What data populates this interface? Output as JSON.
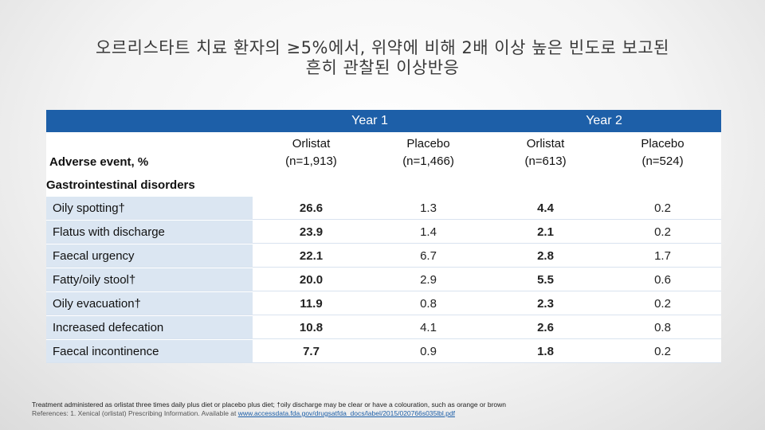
{
  "title": {
    "line1": "오르리스타트 치료 환자의 ≥5%에서, 위약에 비해 2배 이상 높은 빈도로 보고된",
    "line2": "흔히 관찰된 이상반응"
  },
  "table": {
    "year1": "Year 1",
    "year2": "Year 2",
    "row_header": "Adverse event, %",
    "columns": [
      {
        "name": "Orlistat",
        "n": "(n=1,913)"
      },
      {
        "name": "Placebo",
        "n": "(n=1,466)"
      },
      {
        "name": "Orlistat",
        "n": "(n=613)"
      },
      {
        "name": "Placebo",
        "n": "(n=524)"
      }
    ],
    "section": "Gastrointestinal disorders",
    "rows": [
      {
        "event": "Oily spotting†",
        "values": [
          "26.6",
          "1.3",
          "4.4",
          "0.2"
        ]
      },
      {
        "event": "Flatus with discharge",
        "values": [
          "23.9",
          "1.4",
          "2.1",
          "0.2"
        ]
      },
      {
        "event": "Faecal urgency",
        "values": [
          "22.1",
          "6.7",
          "2.8",
          "1.7"
        ]
      },
      {
        "event": "Fatty/oily stool†",
        "values": [
          "20.0",
          "2.9",
          "5.5",
          "0.6"
        ]
      },
      {
        "event": "Oily evacuation†",
        "values": [
          "11.9",
          "0.8",
          "2.3",
          "0.2"
        ]
      },
      {
        "event": "Increased defecation",
        "values": [
          "10.8",
          "4.1",
          "2.6",
          "0.8"
        ]
      },
      {
        "event": "Faecal incontinence",
        "values": [
          "7.7",
          "0.9",
          "1.8",
          "0.2"
        ]
      }
    ]
  },
  "footnote": {
    "note": "Treatment administered as orlistat three times daily plus diet or placebo plus diet; †oily discharge may be clear or have a colouration, such as orange or brown",
    "ref_prefix": "References: 1. Xenical (orlistat) Prescribing Information. Available at ",
    "ref_link": "www.accessdata.fda.gov/drugsatfda_docs/label/2015/020766s035lbl.pdf"
  }
}
